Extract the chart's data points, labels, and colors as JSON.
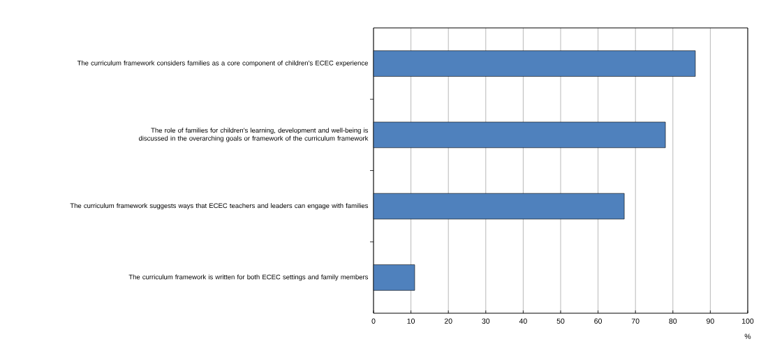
{
  "chart_data": {
    "type": "bar",
    "orientation": "horizontal",
    "categories": [
      "The curriculum framework considers families as a core component of children’s ECEC experience",
      "The role of families for children’s learning, development and well-being is discussed in the overarching goals or framework of the curriculum framework",
      "The curriculum framework suggests ways that ECEC teachers and leaders can engage with families",
      "The curriculum framework is written for both ECEC settings and family members"
    ],
    "values": [
      86,
      78,
      67,
      11
    ],
    "color": "#4f81bd",
    "xlabel": "%",
    "xlim": [
      0,
      100
    ],
    "xticks": [
      0,
      10,
      20,
      30,
      40,
      50,
      60,
      70,
      80,
      90,
      100
    ],
    "grid": "x"
  }
}
